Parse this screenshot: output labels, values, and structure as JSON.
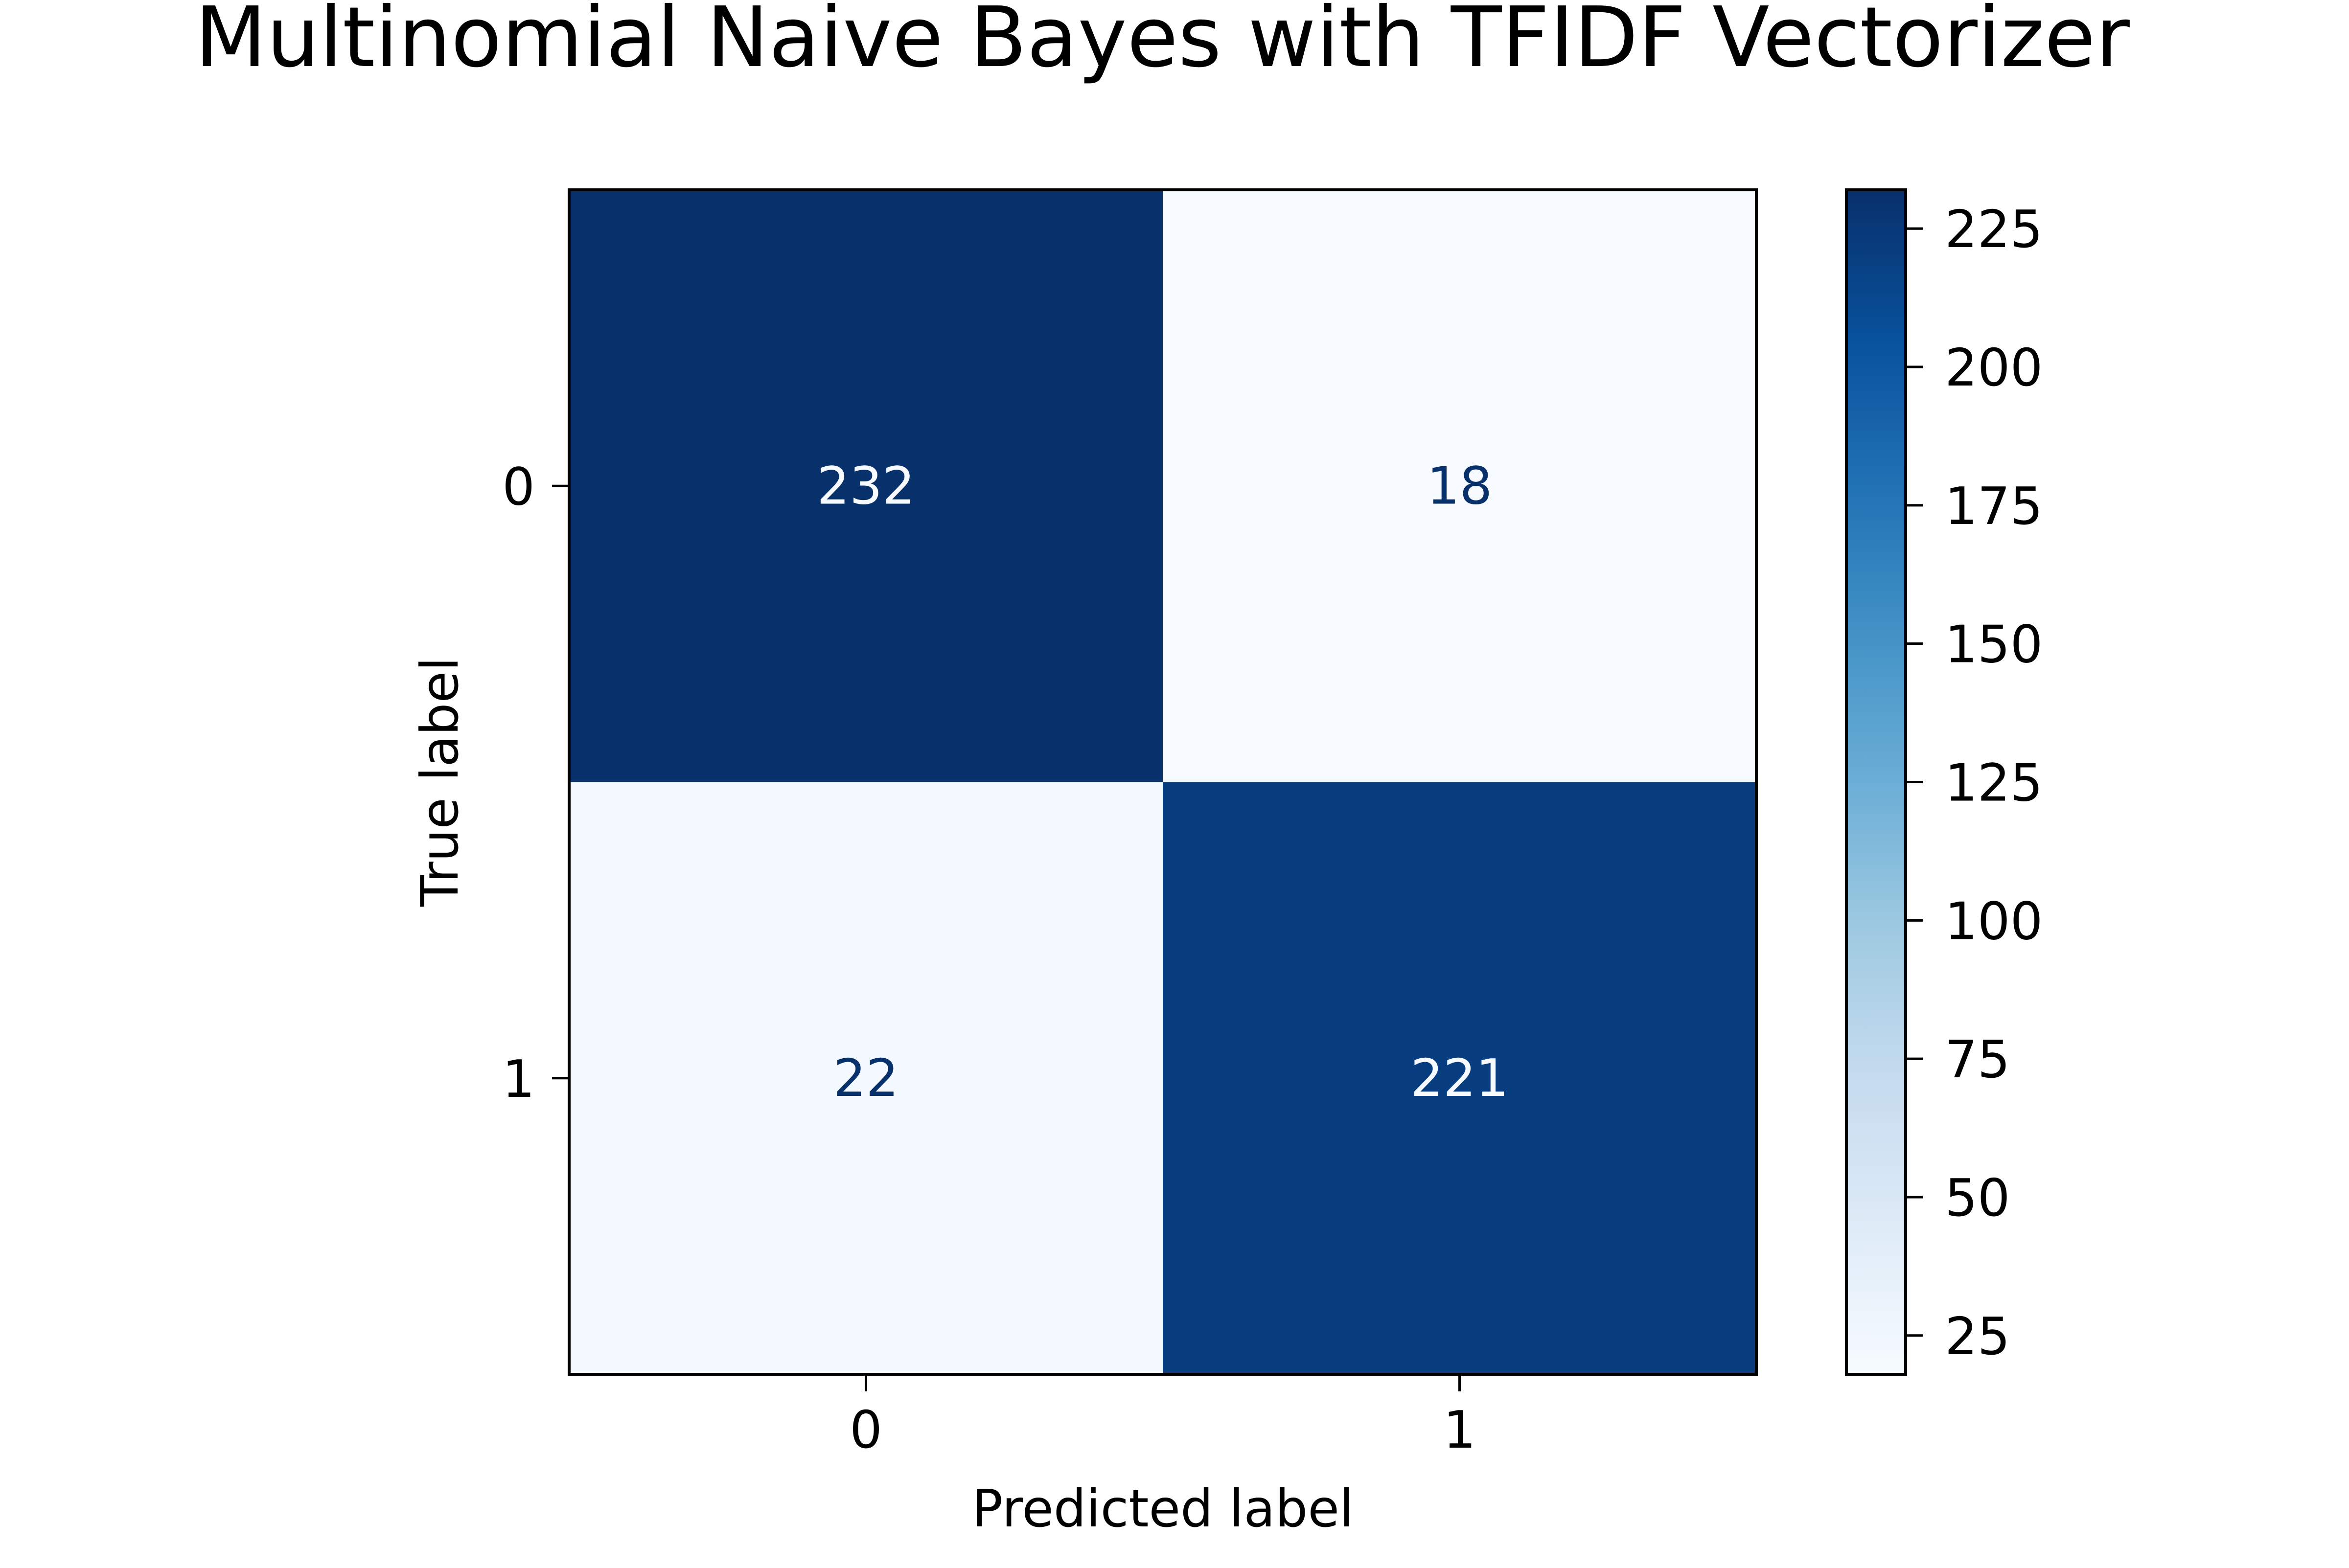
{
  "chart_data": {
    "type": "heatmap",
    "title": "Multinomial Naive Bayes with TFIDF Vectorizer",
    "xlabel": "Predicted label",
    "ylabel": "True label",
    "x_categories": [
      "0",
      "1"
    ],
    "y_categories": [
      "0",
      "1"
    ],
    "matrix": [
      [
        232,
        18
      ],
      [
        22,
        221
      ]
    ],
    "colormap": "Blues",
    "colorbar": {
      "range": [
        18,
        232
      ],
      "ticks": [
        25,
        50,
        75,
        100,
        125,
        150,
        175,
        200,
        225
      ]
    },
    "grid": false
  }
}
